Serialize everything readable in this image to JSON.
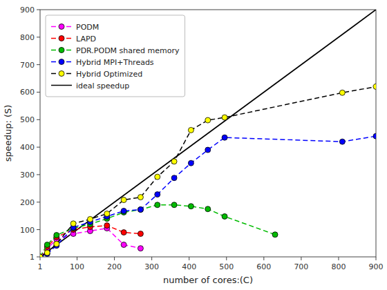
{
  "chart_data": {
    "type": "line",
    "x_label": "number of cores:(C)",
    "y_label": "speedup: (S)",
    "xlim": [
      1,
      900
    ],
    "ylim": [
      1,
      900
    ],
    "xticks": [
      1,
      100,
      200,
      300,
      400,
      500,
      600,
      700,
      800,
      900
    ],
    "yticks": [
      1,
      100,
      200,
      300,
      400,
      500,
      600,
      700,
      800,
      900
    ],
    "grid": false,
    "legend": "upper left",
    "series": [
      {
        "name": "PODM",
        "color": "#ff00ff",
        "line_style": "dashed",
        "marker": "circle",
        "x": [
          1,
          20,
          45,
          90,
          135,
          180,
          225,
          270
        ],
        "values": [
          1,
          30,
          65,
          85,
          95,
          105,
          45,
          32
        ]
      },
      {
        "name": "LAPD",
        "color": "#ff0000",
        "line_style": "dashed",
        "marker": "circle",
        "x": [
          1,
          20,
          45,
          90,
          135,
          180,
          225,
          270
        ],
        "values": [
          1,
          38,
          73,
          100,
          110,
          115,
          90,
          85
        ]
      },
      {
        "name": "PDR.PODM shared memory",
        "color": "#00bb00",
        "line_style": "dashed",
        "marker": "circle",
        "x": [
          1,
          20,
          45,
          90,
          135,
          180,
          225,
          270,
          315,
          360,
          405,
          450,
          495,
          630
        ],
        "values": [
          1,
          45,
          80,
          105,
          120,
          140,
          163,
          173,
          190,
          190,
          185,
          175,
          148,
          82
        ]
      },
      {
        "name": "Hybrid MPI+Threads",
        "color": "#0000ff",
        "line_style": "dashed",
        "marker": "circle",
        "x": [
          1,
          20,
          45,
          90,
          135,
          180,
          225,
          270,
          315,
          360,
          405,
          450,
          495,
          810,
          900
        ],
        "values": [
          1,
          12,
          42,
          108,
          128,
          148,
          168,
          173,
          228,
          288,
          342,
          390,
          435,
          420,
          440
        ]
      },
      {
        "name": "Hybrid Optimized",
        "color": "#000000",
        "line_style": "dashed",
        "marker": "circle",
        "colors": [
          "#ffff00",
          "#ffff00",
          "#ffff00",
          "#ffff00",
          "#ffff00",
          "#ffff00",
          "#ffff00",
          "#ffff00",
          "#ffff00",
          "#ffff00",
          "#ffff00",
          "#ffff00",
          "#ffff00",
          "#ffff00",
          "#ffff00"
        ],
        "x": [
          1,
          20,
          45,
          90,
          135,
          180,
          225,
          270,
          315,
          360,
          405,
          450,
          495,
          810,
          900
        ],
        "values": [
          1,
          16,
          48,
          122,
          138,
          158,
          208,
          218,
          292,
          348,
          462,
          498,
          508,
          598,
          620
        ]
      },
      {
        "name": "ideal speedup",
        "color": "#000000",
        "line_style": "solid",
        "marker": "none",
        "x": [
          1,
          900
        ],
        "values": [
          1,
          900
        ]
      }
    ]
  }
}
